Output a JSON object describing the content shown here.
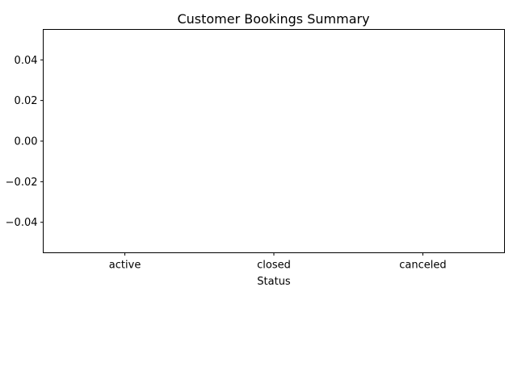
{
  "chart_data": {
    "type": "bar",
    "title": "Customer Bookings Summary",
    "xlabel": "Status",
    "ylabel": "",
    "categories": [
      "active",
      "closed",
      "canceled"
    ],
    "values": [
      0,
      0,
      0
    ],
    "ylim": [
      -0.055,
      0.055
    ],
    "yticks": [
      0.04,
      0.02,
      0.0,
      -0.02,
      -0.04
    ],
    "ytick_labels": [
      "0.04",
      "0.02",
      "0.00",
      "−0.02",
      "−0.04"
    ],
    "grid": false,
    "legend": "none"
  }
}
